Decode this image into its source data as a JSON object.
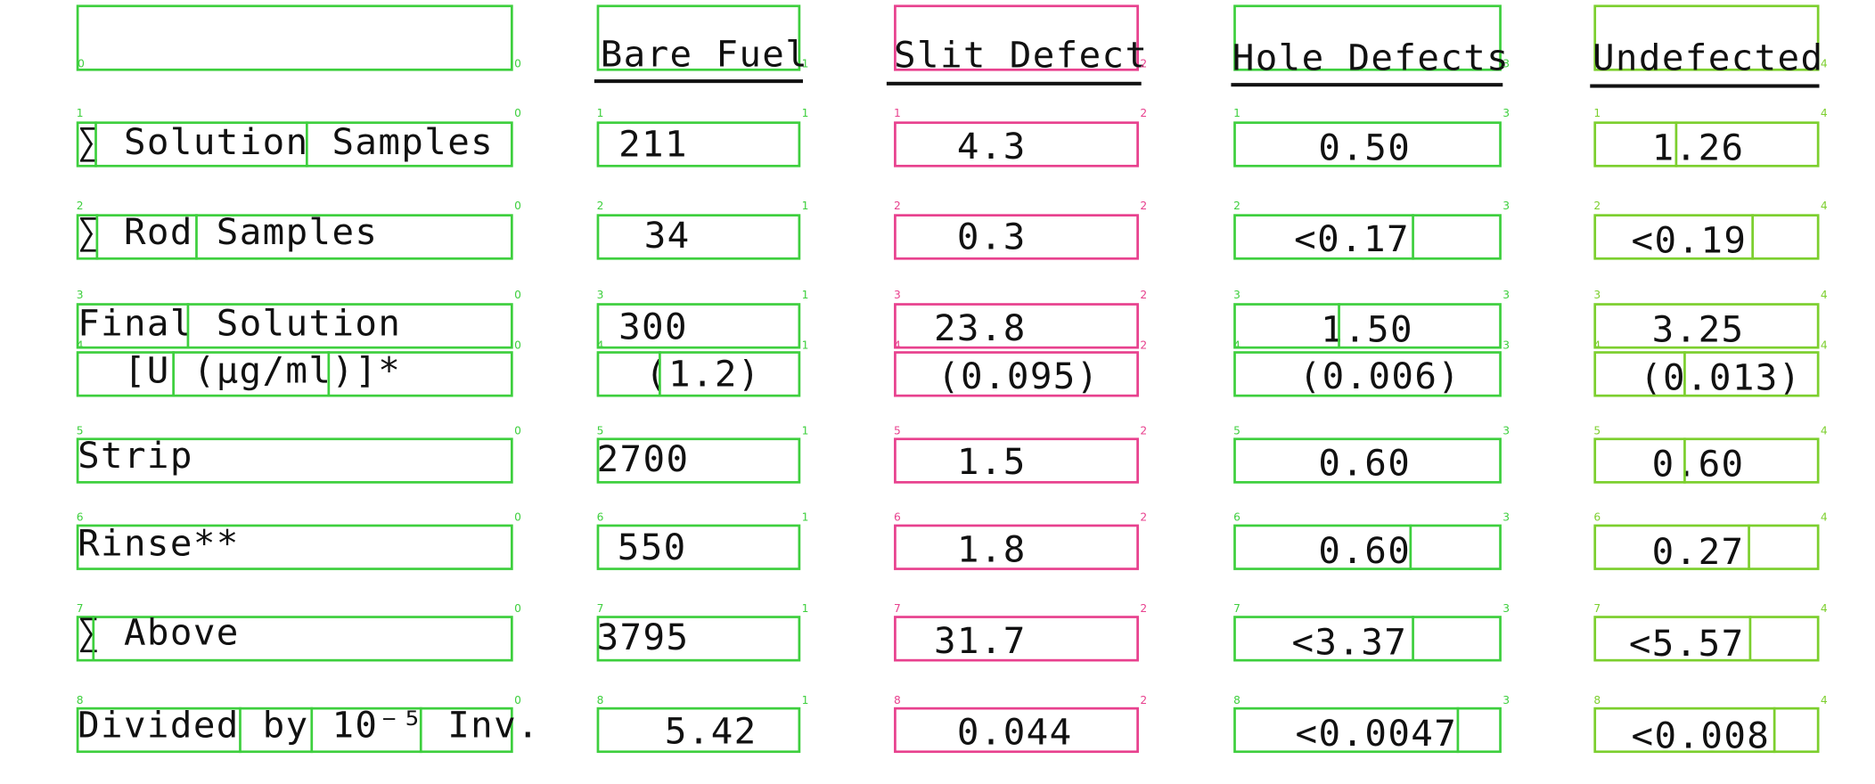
{
  "headers": {
    "bare_fuel": "Bare Fuel",
    "slit_defect": "Slit Defect",
    "hole_defects": "Hole Defects",
    "undefected": "Undefected"
  },
  "rows": [
    {
      "label": "∑ Solution Samples",
      "bare_fuel": "211",
      "slit_defect": "4.3",
      "hole_defects": "0.50",
      "undefected": "1.26"
    },
    {
      "label": "∑ Rod Samples",
      "bare_fuel": "34",
      "slit_defect": "0.3",
      "hole_defects": "<0.17",
      "undefected": "<0.19"
    },
    {
      "label": "Final Solution",
      "bare_fuel": "300",
      "slit_defect": "23.8",
      "hole_defects": "1.50",
      "undefected": "3.25"
    },
    {
      "label": "[U (µg/ml)]*",
      "bare_fuel": "(1.2)",
      "slit_defect": "(0.095)",
      "hole_defects": "(0.006)",
      "undefected": "(0.013)"
    },
    {
      "label": "Strip",
      "bare_fuel": "2700",
      "slit_defect": "1.5",
      "hole_defects": "0.60",
      "undefected": "0.60"
    },
    {
      "label": "Rinse**",
      "bare_fuel": "550",
      "slit_defect": "1.8",
      "hole_defects": "0.60",
      "undefected": "0.27"
    },
    {
      "label": "∑ Above",
      "bare_fuel": "3795",
      "slit_defect": "31.7",
      "hole_defects": "<3.37",
      "undefected": "<5.57"
    },
    {
      "label": "Divided by 10⁻⁵ Inv.",
      "bare_fuel": "5.42",
      "slit_defect": "0.044",
      "hole_defects": "<0.0047",
      "undefected": "<0.008"
    }
  ],
  "annotation_indices": {
    "row_index": [
      "0",
      "1",
      "2",
      "3",
      "4",
      "5",
      "6",
      "7",
      "8"
    ],
    "column_index": [
      "0",
      "1",
      "2",
      "3",
      "4"
    ]
  }
}
